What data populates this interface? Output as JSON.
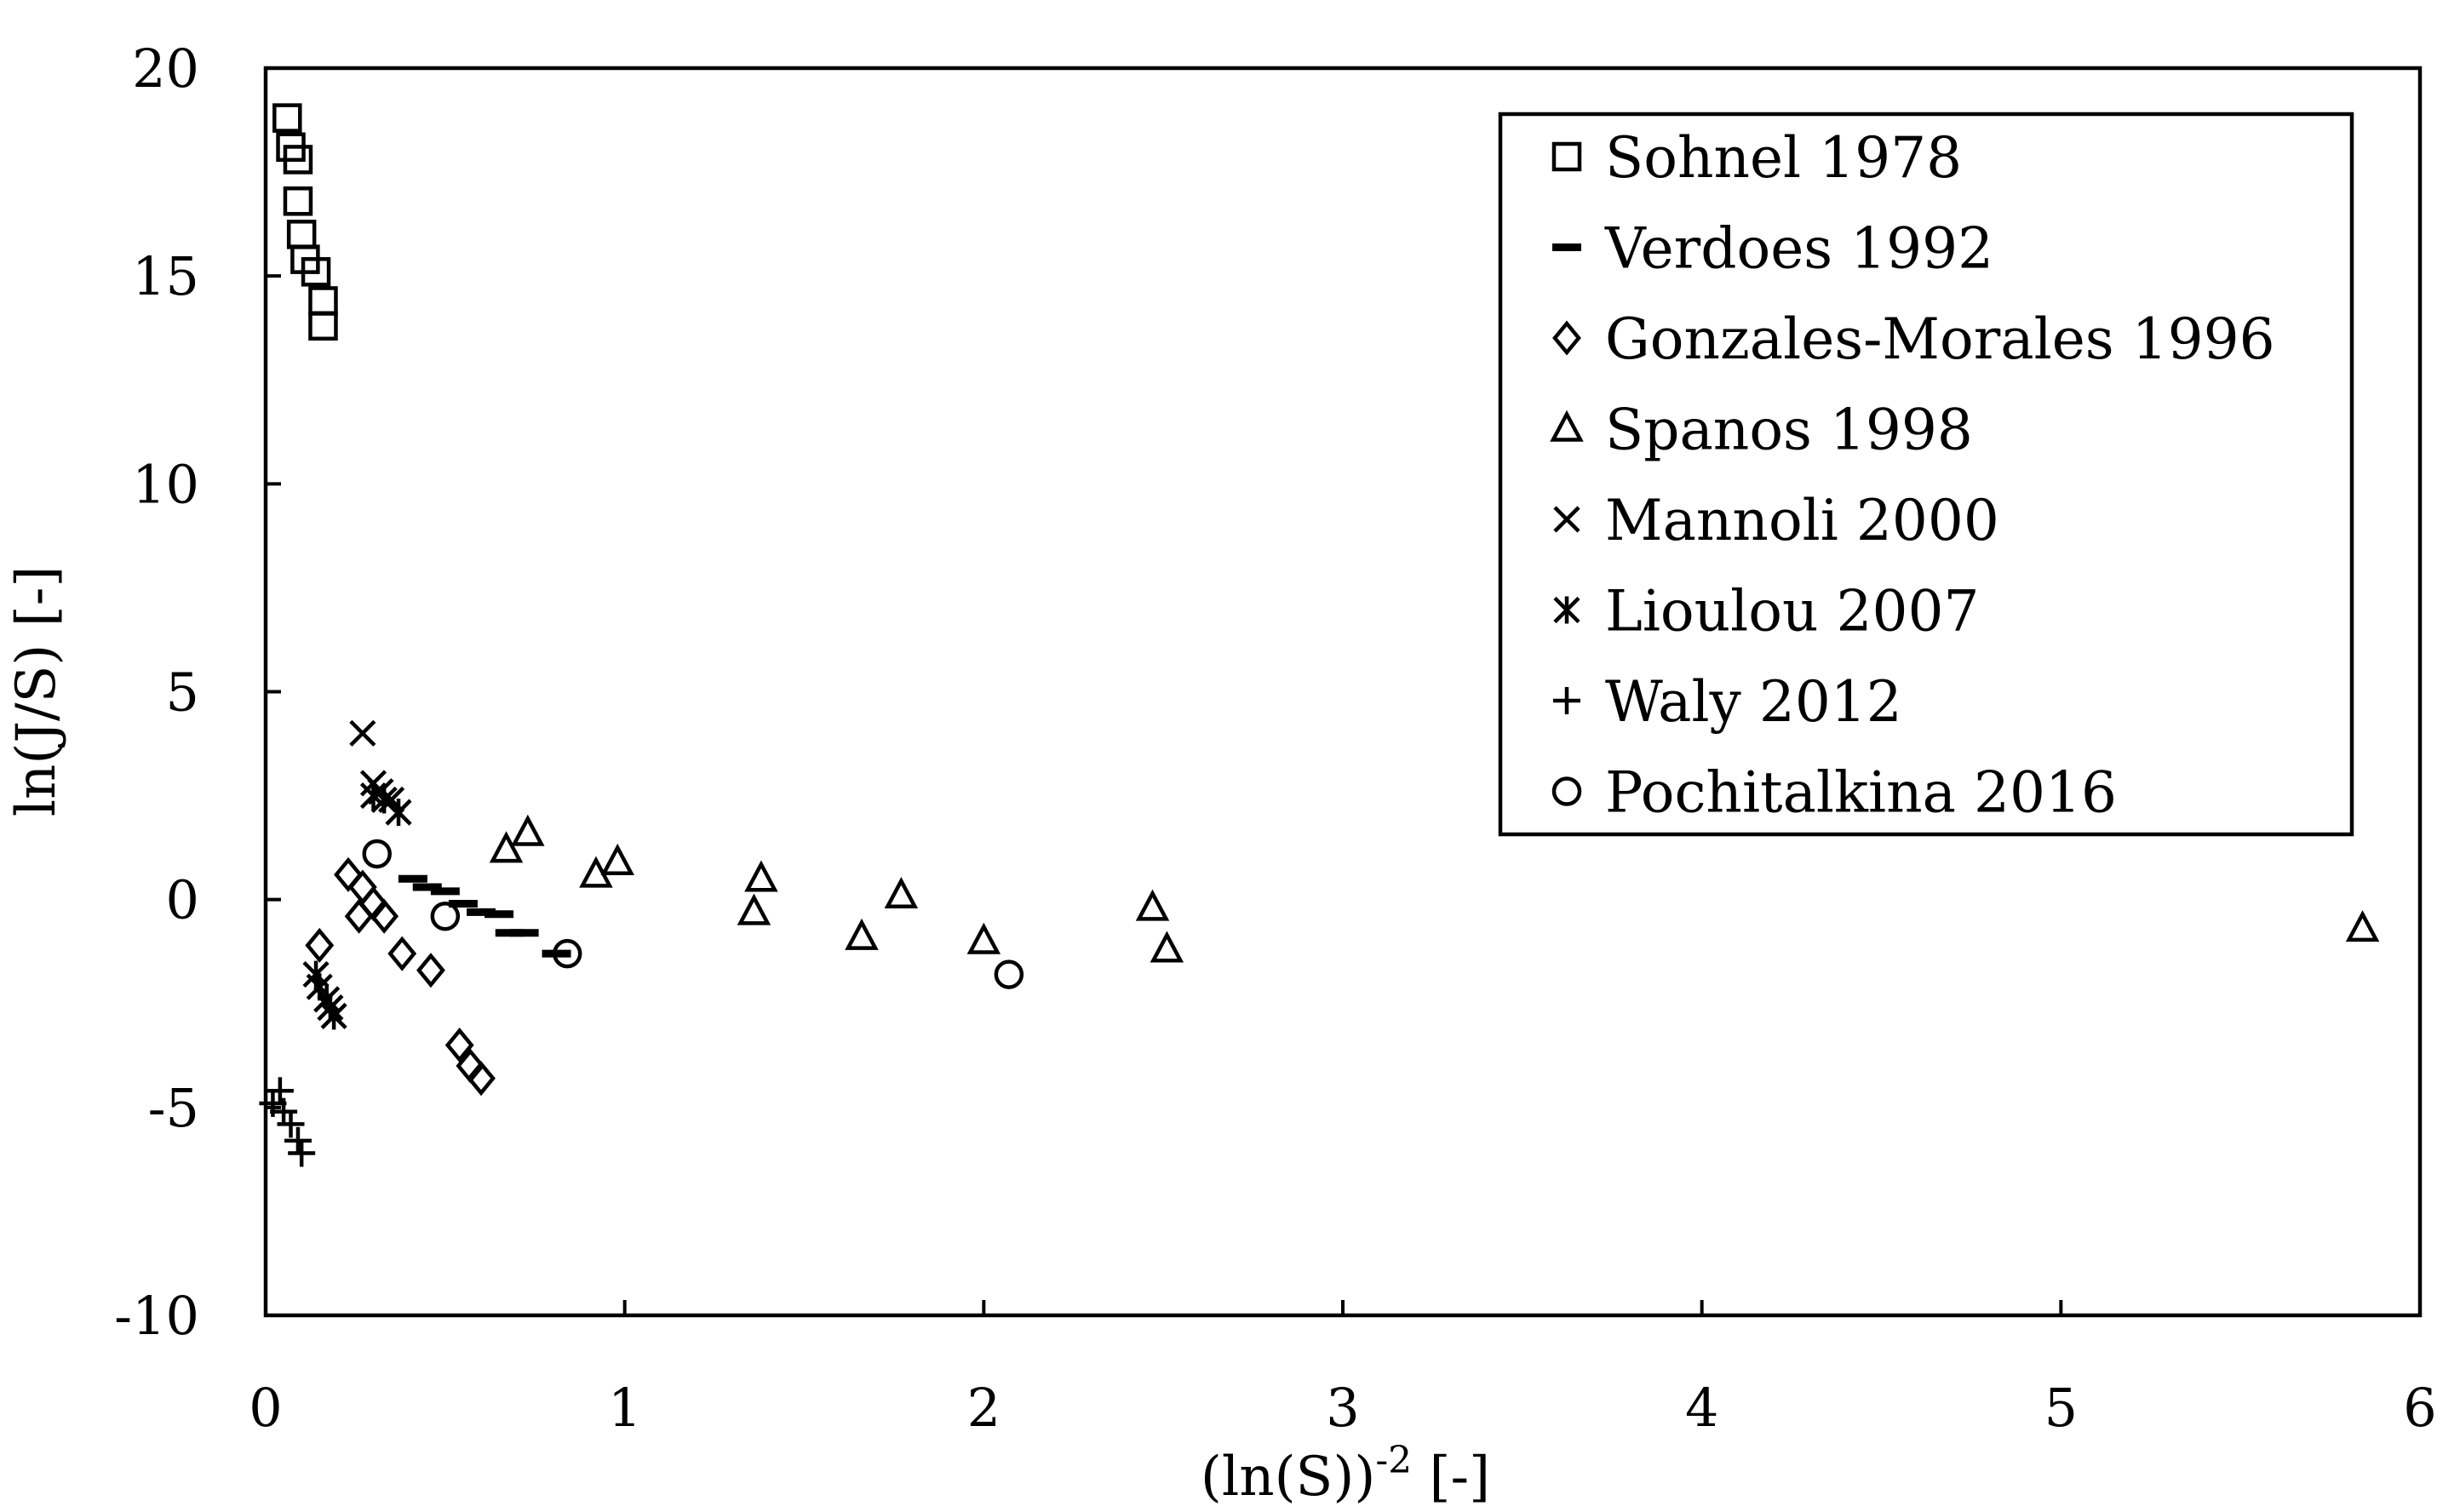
{
  "chart_data": {
    "type": "scatter",
    "title": "",
    "xlabel_base": "(ln(S))",
    "xlabel_exp": "-2",
    "xlabel_unit": " [-]",
    "ylabel": "ln(J/S) [-]",
    "xlim": [
      0,
      6
    ],
    "ylim": [
      -10,
      20
    ],
    "xticks": [
      0,
      1,
      2,
      3,
      4,
      5,
      6
    ],
    "yticks": [
      -10,
      -5,
      0,
      5,
      10,
      15,
      20
    ],
    "grid": false,
    "legend_position": "top-right",
    "series": [
      {
        "name": "Sohnel 1978",
        "marker": "square",
        "points": [
          [
            0.06,
            18.8
          ],
          [
            0.07,
            18.1
          ],
          [
            0.09,
            17.8
          ],
          [
            0.09,
            16.8
          ],
          [
            0.1,
            16.0
          ],
          [
            0.11,
            15.4
          ],
          [
            0.14,
            15.1
          ],
          [
            0.16,
            14.4
          ],
          [
            0.16,
            13.8
          ]
        ]
      },
      {
        "name": "Verdoes 1992",
        "marker": "dash",
        "points": [
          [
            0.41,
            0.5
          ],
          [
            0.45,
            0.3
          ],
          [
            0.5,
            0.2
          ],
          [
            0.55,
            -0.1
          ],
          [
            0.6,
            -0.3
          ],
          [
            0.65,
            -0.35
          ],
          [
            0.68,
            -0.8
          ],
          [
            0.72,
            -0.8
          ],
          [
            0.81,
            -1.3
          ]
        ]
      },
      {
        "name": "Gonzales-Morales 1996",
        "marker": "diamond",
        "points": [
          [
            0.23,
            0.6
          ],
          [
            0.27,
            0.3
          ],
          [
            0.26,
            -0.4
          ],
          [
            0.3,
            -0.1
          ],
          [
            0.33,
            -0.4
          ],
          [
            0.15,
            -1.1
          ],
          [
            0.38,
            -1.3
          ],
          [
            0.46,
            -1.7
          ],
          [
            0.54,
            -3.5
          ],
          [
            0.57,
            -4.0
          ],
          [
            0.6,
            -4.3
          ]
        ]
      },
      {
        "name": "Spanos 1998",
        "marker": "triangle",
        "points": [
          [
            0.67,
            1.2
          ],
          [
            0.73,
            1.6
          ],
          [
            0.92,
            0.6
          ],
          [
            0.98,
            0.9
          ],
          [
            1.36,
            -0.3
          ],
          [
            1.38,
            0.5
          ],
          [
            1.66,
            -0.9
          ],
          [
            1.77,
            0.1
          ],
          [
            2.0,
            -1.0
          ],
          [
            2.47,
            -0.2
          ],
          [
            2.51,
            -1.2
          ],
          [
            5.84,
            -0.7
          ]
        ]
      },
      {
        "name": "Mannoli 2000",
        "marker": "x",
        "points": [
          [
            0.27,
            4.0
          ],
          [
            0.3,
            2.8
          ],
          [
            0.32,
            2.6
          ],
          [
            0.35,
            2.4
          ]
        ]
      },
      {
        "name": "Lioulou 2007",
        "marker": "asterisk",
        "points": [
          [
            0.3,
            2.5
          ],
          [
            0.33,
            2.4
          ],
          [
            0.37,
            2.1
          ],
          [
            0.14,
            -1.8
          ],
          [
            0.15,
            -2.1
          ],
          [
            0.17,
            -2.4
          ],
          [
            0.18,
            -2.6
          ],
          [
            0.19,
            -2.8
          ]
        ]
      },
      {
        "name": "Waly 2012",
        "marker": "plus",
        "points": [
          [
            0.02,
            -4.9
          ],
          [
            0.04,
            -4.6
          ],
          [
            0.05,
            -5.1
          ],
          [
            0.07,
            -5.4
          ],
          [
            0.09,
            -5.8
          ],
          [
            0.1,
            -6.1
          ]
        ]
      },
      {
        "name": "Pochitalkina 2016",
        "marker": "circle",
        "points": [
          [
            0.31,
            1.1
          ],
          [
            0.5,
            -0.4
          ],
          [
            0.84,
            -1.3
          ],
          [
            2.07,
            -1.8
          ]
        ]
      }
    ]
  }
}
